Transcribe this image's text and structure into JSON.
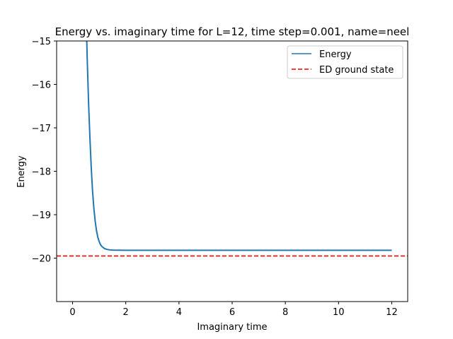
{
  "chart_data": {
    "type": "line",
    "title": "Energy vs. imaginary time for L=12, time step=0.001, name=neel",
    "xlabel": "Imaginary time",
    "ylabel": "Energy",
    "xlim": [
      -0.6,
      12.6
    ],
    "ylim": [
      -21.0,
      -15.0
    ],
    "xticks": [
      0,
      2,
      4,
      6,
      8,
      10,
      12
    ],
    "yticks": [
      -20,
      -19,
      -18,
      -17,
      -16,
      -15
    ],
    "xtick_labels": [
      "0",
      "2",
      "4",
      "6",
      "8",
      "10",
      "12"
    ],
    "ytick_labels": [
      "−20",
      "−19",
      "−18",
      "−17",
      "−16",
      "−15"
    ],
    "legend_position": "top-right",
    "series": [
      {
        "name": "Energy",
        "color": "#1f77b4",
        "style": "solid",
        "x": [
          0.5,
          0.55,
          0.6,
          0.65,
          0.7,
          0.75,
          0.8,
          0.85,
          0.9,
          0.95,
          1.0,
          1.05,
          1.1,
          1.2,
          1.3,
          1.4,
          1.5,
          2.0,
          4.0,
          6.0,
          8.0,
          10.0,
          12.0
        ],
        "values": [
          -14.2,
          -15.4,
          -16.4,
          -17.2,
          -17.9,
          -18.45,
          -18.85,
          -19.15,
          -19.37,
          -19.52,
          -19.62,
          -19.69,
          -19.73,
          -19.78,
          -19.8,
          -19.81,
          -19.815,
          -19.82,
          -19.82,
          -19.82,
          -19.82,
          -19.82,
          -19.82
        ]
      },
      {
        "name": "ED ground state",
        "color": "#ff0000",
        "style": "dashed",
        "y": -19.95
      }
    ]
  }
}
